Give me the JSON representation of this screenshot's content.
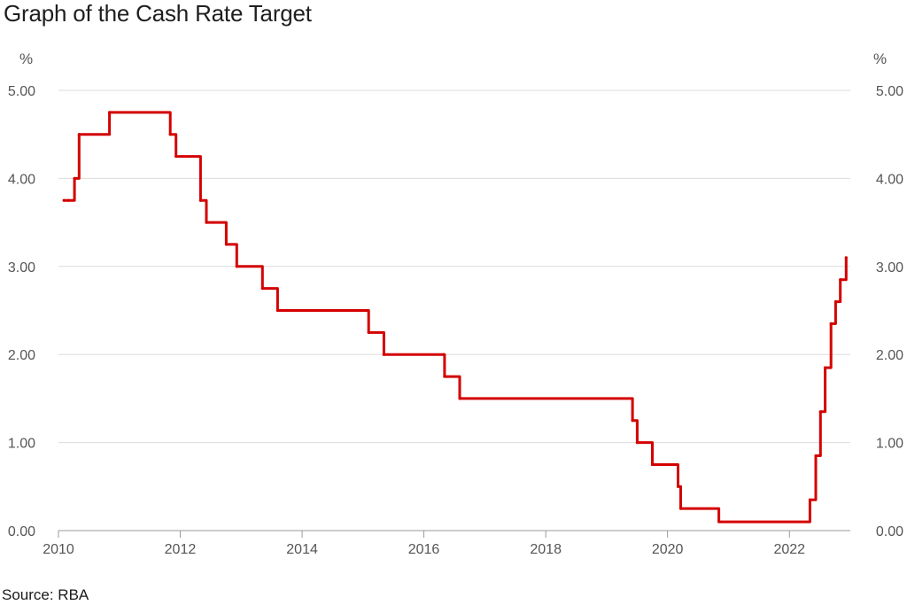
{
  "title": "Graph of the Cash Rate Target",
  "source": "Source: RBA",
  "chart_data": {
    "type": "line",
    "title": "Graph of the Cash Rate Target",
    "y_unit_left": "%",
    "y_unit_right": "%",
    "ylim": [
      0,
      5
    ],
    "xlim": [
      "2010-01-01",
      "2023-01-01"
    ],
    "y_ticks": [
      "0.00",
      "1.00",
      "2.00",
      "3.00",
      "4.00",
      "5.00"
    ],
    "x_ticks": [
      "2010",
      "2012",
      "2014",
      "2016",
      "2018",
      "2020",
      "2022"
    ],
    "grid": true,
    "line_color": "#d40000",
    "step": true,
    "series": [
      {
        "x": [
          "2010-02-03",
          "2010-03-03",
          "2010-04-07",
          "2010-05-05",
          "2010-11-03",
          "2011-11-02",
          "2011-12-07",
          "2012-05-02",
          "2012-06-06",
          "2012-10-03",
          "2012-12-05",
          "2013-05-08",
          "2013-08-07",
          "2014-12-31",
          "2015-02-04",
          "2015-05-06",
          "2016-04-30",
          "2016-05-04",
          "2016-08-03",
          "2019-06-05",
          "2019-07-03",
          "2019-10-02",
          "2020-03-04",
          "2020-03-20",
          "2020-11-04",
          "2022-05-04",
          "2022-06-08",
          "2022-07-06",
          "2022-08-03",
          "2022-09-07",
          "2022-10-05",
          "2022-11-02",
          "2022-12-07"
        ],
        "values": [
          3.75,
          3.75,
          4.0,
          4.5,
          4.75,
          4.5,
          4.25,
          3.75,
          3.5,
          3.25,
          3.0,
          2.75,
          2.5,
          2.5,
          2.25,
          2.0,
          2.0,
          1.75,
          1.5,
          1.25,
          1.0,
          0.75,
          0.5,
          0.25,
          0.1,
          0.35,
          0.85,
          1.35,
          1.85,
          2.35,
          2.6,
          2.85,
          3.1
        ]
      }
    ]
  }
}
